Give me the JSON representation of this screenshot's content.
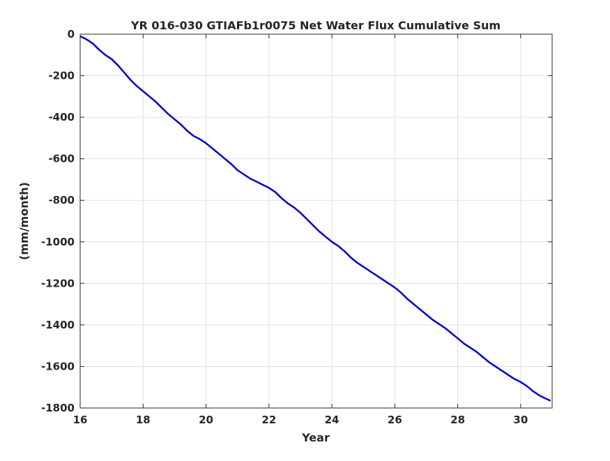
{
  "chart_data": {
    "type": "line",
    "title": "YR 016-030 GTIAFb1r0075 Net Water Flux Cumulative Sum",
    "xlabel": "Year",
    "ylabel": "(mm/month)",
    "xlim": [
      16,
      31
    ],
    "ylim": [
      -1800,
      0
    ],
    "x_ticks": [
      16,
      18,
      20,
      22,
      24,
      26,
      28,
      30
    ],
    "y_ticks": [
      0,
      -200,
      -400,
      -600,
      -800,
      -1000,
      -1200,
      -1400,
      -1600,
      -1800
    ],
    "grid": true,
    "legend": "none",
    "series": [
      {
        "color": "#0000cc",
        "x": [
          16.0,
          16.2,
          16.4,
          16.6,
          16.8,
          17.0,
          17.2,
          17.4,
          17.6,
          17.8,
          18.0,
          18.2,
          18.4,
          18.6,
          18.8,
          19.0,
          19.2,
          19.4,
          19.6,
          19.8,
          20.0,
          20.2,
          20.4,
          20.6,
          20.8,
          21.0,
          21.2,
          21.4,
          21.6,
          21.8,
          22.0,
          22.2,
          22.4,
          22.6,
          22.8,
          23.0,
          23.2,
          23.4,
          23.6,
          23.8,
          24.0,
          24.2,
          24.4,
          24.6,
          24.8,
          25.0,
          25.2,
          25.4,
          25.6,
          25.8,
          26.0,
          26.2,
          26.4,
          26.6,
          26.8,
          27.0,
          27.2,
          27.4,
          27.6,
          27.8,
          28.0,
          28.2,
          28.4,
          28.6,
          28.8,
          29.0,
          29.2,
          29.4,
          29.6,
          29.8,
          30.0,
          30.2,
          30.4,
          30.6,
          30.8,
          30.95
        ],
        "y": [
          -10,
          -25,
          -45,
          -75,
          -100,
          -120,
          -150,
          -185,
          -220,
          -250,
          -275,
          -300,
          -325,
          -355,
          -385,
          -410,
          -435,
          -465,
          -490,
          -505,
          -525,
          -550,
          -575,
          -600,
          -625,
          -655,
          -675,
          -695,
          -710,
          -725,
          -740,
          -760,
          -790,
          -815,
          -835,
          -860,
          -890,
          -920,
          -950,
          -975,
          -1000,
          -1020,
          -1045,
          -1075,
          -1100,
          -1120,
          -1140,
          -1160,
          -1180,
          -1200,
          -1220,
          -1245,
          -1275,
          -1300,
          -1325,
          -1350,
          -1375,
          -1395,
          -1415,
          -1440,
          -1465,
          -1490,
          -1510,
          -1530,
          -1555,
          -1580,
          -1600,
          -1620,
          -1640,
          -1660,
          -1675,
          -1695,
          -1720,
          -1740,
          -1755,
          -1765
        ]
      }
    ]
  }
}
